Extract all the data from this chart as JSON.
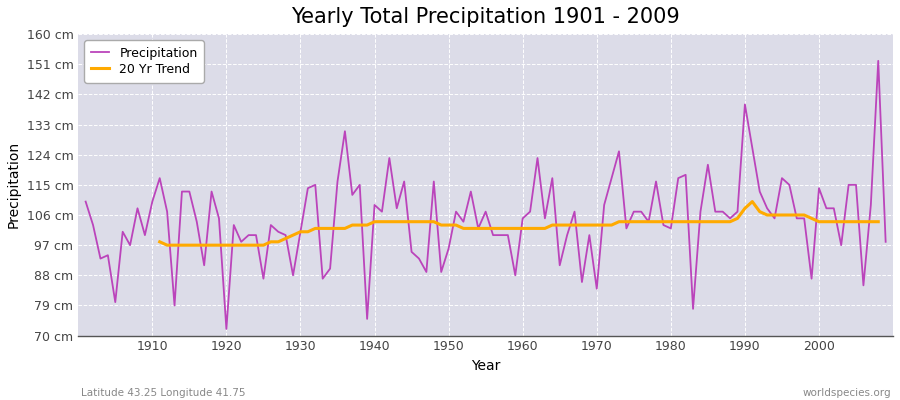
{
  "title": "Yearly Total Precipitation 1901 - 2009",
  "xlabel": "Year",
  "ylabel": "Precipitation",
  "subtitle": "Latitude 43.25 Longitude 41.75",
  "watermark": "worldspecies.org",
  "years": [
    1901,
    1902,
    1903,
    1904,
    1905,
    1906,
    1907,
    1908,
    1909,
    1910,
    1911,
    1912,
    1913,
    1914,
    1915,
    1916,
    1917,
    1918,
    1919,
    1920,
    1921,
    1922,
    1923,
    1924,
    1925,
    1926,
    1927,
    1928,
    1929,
    1930,
    1931,
    1932,
    1933,
    1934,
    1935,
    1936,
    1937,
    1938,
    1939,
    1940,
    1941,
    1942,
    1943,
    1944,
    1945,
    1946,
    1947,
    1948,
    1949,
    1950,
    1951,
    1952,
    1953,
    1954,
    1955,
    1956,
    1957,
    1958,
    1959,
    1960,
    1961,
    1962,
    1963,
    1964,
    1965,
    1966,
    1967,
    1968,
    1969,
    1970,
    1971,
    1972,
    1973,
    1974,
    1975,
    1976,
    1977,
    1978,
    1979,
    1980,
    1981,
    1982,
    1983,
    1984,
    1985,
    1986,
    1987,
    1988,
    1989,
    1990,
    1991,
    1992,
    1993,
    1994,
    1995,
    1996,
    1997,
    1998,
    1999,
    2000,
    2001,
    2002,
    2003,
    2004,
    2005,
    2006,
    2007,
    2008,
    2009
  ],
  "precip": [
    110,
    103,
    93,
    94,
    80,
    101,
    97,
    108,
    100,
    110,
    117,
    107,
    79,
    113,
    113,
    104,
    91,
    113,
    105,
    72,
    103,
    98,
    100,
    100,
    87,
    103,
    101,
    100,
    88,
    101,
    114,
    115,
    87,
    90,
    116,
    131,
    112,
    115,
    75,
    109,
    107,
    123,
    108,
    116,
    95,
    93,
    89,
    116,
    89,
    96,
    107,
    104,
    113,
    102,
    107,
    100,
    100,
    100,
    88,
    105,
    107,
    123,
    105,
    117,
    91,
    100,
    107,
    86,
    100,
    84,
    109,
    117,
    125,
    102,
    107,
    107,
    104,
    116,
    103,
    102,
    117,
    118,
    78,
    107,
    121,
    107,
    107,
    105,
    107,
    139,
    126,
    113,
    108,
    105,
    117,
    115,
    105,
    105,
    87,
    114,
    108,
    108,
    97,
    115,
    115,
    85,
    109,
    152,
    98
  ],
  "trend": [
    null,
    null,
    null,
    null,
    null,
    null,
    null,
    null,
    null,
    null,
    98,
    97,
    97,
    97,
    97,
    97,
    97,
    97,
    97,
    97,
    97,
    97,
    97,
    97,
    97,
    98,
    98,
    99,
    100,
    101,
    101,
    102,
    102,
    102,
    102,
    102,
    103,
    103,
    103,
    104,
    104,
    104,
    104,
    104,
    104,
    104,
    104,
    104,
    103,
    103,
    103,
    102,
    102,
    102,
    102,
    102,
    102,
    102,
    102,
    102,
    102,
    102,
    102,
    103,
    103,
    103,
    103,
    103,
    103,
    103,
    103,
    103,
    104,
    104,
    104,
    104,
    104,
    104,
    104,
    104,
    104,
    104,
    104,
    104,
    104,
    104,
    104,
    104,
    105,
    108,
    110,
    107,
    106,
    106,
    106,
    106,
    106,
    106,
    105,
    104,
    104,
    104,
    104,
    104,
    104,
    104,
    104,
    104,
    null
  ],
  "precip_color": "#bb44bb",
  "trend_color": "#ffaa00",
  "fig_bg_color": "#ffffff",
  "plot_bg_color": "#dcdce8",
  "ylim": [
    70,
    160
  ],
  "yticks": [
    70,
    79,
    88,
    97,
    106,
    115,
    124,
    133,
    142,
    151,
    160
  ],
  "ytick_labels": [
    "70 cm",
    "79 cm",
    "88 cm",
    "97 cm",
    "106 cm",
    "115 cm",
    "124 cm",
    "133 cm",
    "142 cm",
    "151 cm",
    "160 cm"
  ],
  "xticks": [
    1910,
    1920,
    1930,
    1940,
    1950,
    1960,
    1970,
    1980,
    1990,
    2000
  ],
  "title_fontsize": 15,
  "axis_fontsize": 10,
  "tick_fontsize": 9,
  "legend_fontsize": 9
}
